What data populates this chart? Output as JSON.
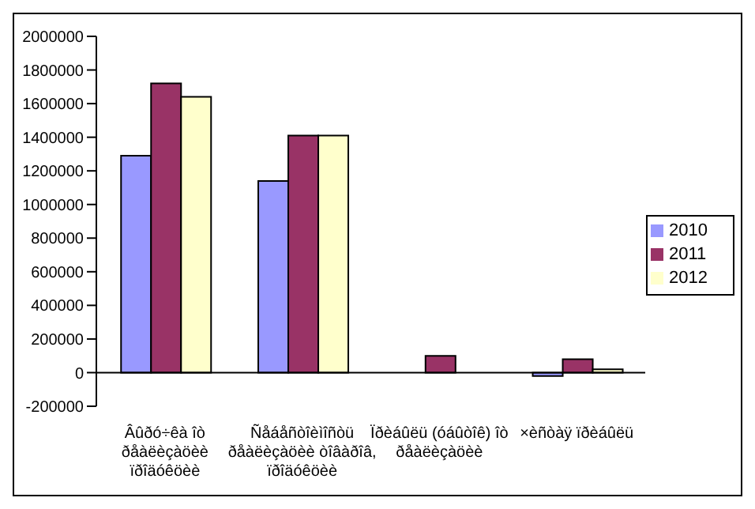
{
  "chart_data": {
    "type": "bar",
    "categories": [
      "Âûðó÷êà îò ðåàëèçàöèè ïðîäóêöèè",
      "Ñåáåñòîèìîñòü ðåàëèçàöèè òîâàðîâ, ïðîäóêöèè",
      "Ïðèáûëü (óáûòîê) îò ðåàëèçàöèè",
      "×èñòàÿ ïðèáûëü"
    ],
    "series": [
      {
        "name": "2010",
        "color": "#9999ff",
        "values": [
          1290000,
          1140000,
          0,
          -20000
        ]
      },
      {
        "name": "2011",
        "color": "#993366",
        "values": [
          1720000,
          1410000,
          100000,
          80000
        ]
      },
      {
        "name": "2012",
        "color": "#ffffcc",
        "values": [
          1640000,
          1410000,
          0,
          20000
        ]
      }
    ],
    "ylim": [
      -200000,
      2000000
    ],
    "yticks": [
      -200000,
      0,
      200000,
      400000,
      600000,
      800000,
      1000000,
      1200000,
      1400000,
      1600000,
      1800000,
      2000000
    ],
    "ref_lines": [
      {
        "axis": "y",
        "value": 0,
        "color": "#000000"
      }
    ],
    "legend": "right"
  }
}
